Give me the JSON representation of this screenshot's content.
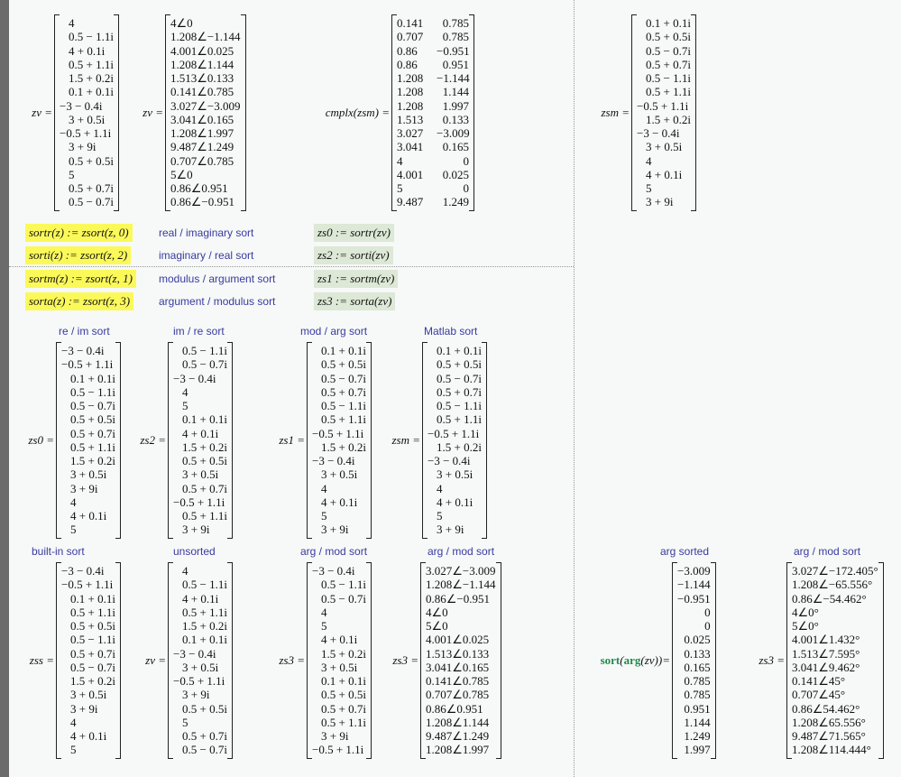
{
  "matrices": {
    "zv": {
      "label": "zv =",
      "rows": [
        "4",
        "0.5 − 1.1i",
        "4 + 0.1i",
        "0.5 + 1.1i",
        "1.5 + 0.2i",
        "0.1 + 0.1i",
        "−3 − 0.4i",
        "3 + 0.5i",
        "−0.5 + 1.1i",
        "3 + 9i",
        "0.5 + 0.5i",
        "5",
        "0.5 + 0.7i",
        "0.5 − 0.7i"
      ]
    },
    "zv_polar": {
      "label": "zv =",
      "rows": [
        "4∠0",
        "1.208∠−1.144",
        "4.001∠0.025",
        "1.208∠1.144",
        "1.513∠0.133",
        "0.141∠0.785",
        "3.027∠−3.009",
        "3.041∠0.165",
        "1.208∠1.997",
        "9.487∠1.249",
        "0.707∠0.785",
        "5∠0",
        "0.86∠0.951",
        "0.86∠−0.951"
      ]
    },
    "cmplx_zsm": {
      "label": "cmplx(zsm) =",
      "rows": [
        [
          "0.141",
          "0.785"
        ],
        [
          "0.707",
          "0.785"
        ],
        [
          "0.86",
          "−0.951"
        ],
        [
          "0.86",
          "0.951"
        ],
        [
          "1.208",
          "−1.144"
        ],
        [
          "1.208",
          "1.144"
        ],
        [
          "1.208",
          "1.997"
        ],
        [
          "1.513",
          "0.133"
        ],
        [
          "3.027",
          "−3.009"
        ],
        [
          "3.041",
          "0.165"
        ],
        [
          "4",
          "0"
        ],
        [
          "4.001",
          "0.025"
        ],
        [
          "5",
          "0"
        ],
        [
          "9.487",
          "1.249"
        ]
      ]
    },
    "zsm_top": {
      "label": "zsm =",
      "rows": [
        "0.1 + 0.1i",
        "0.5 + 0.5i",
        "0.5 − 0.7i",
        "0.5 + 0.7i",
        "0.5 − 1.1i",
        "0.5 + 1.1i",
        "−0.5 + 1.1i",
        "1.5 + 0.2i",
        "−3 − 0.4i",
        "3 + 0.5i",
        "4",
        "4 + 0.1i",
        "5",
        "3 + 9i"
      ]
    },
    "zs0": {
      "label": "zs0 =",
      "rows": [
        "−3 − 0.4i",
        "−0.5 + 1.1i",
        "0.1 + 0.1i",
        "0.5 − 1.1i",
        "0.5 − 0.7i",
        "0.5 + 0.5i",
        "0.5 + 0.7i",
        "0.5 + 1.1i",
        "1.5 + 0.2i",
        "3 + 0.5i",
        "3 + 9i",
        "4",
        "4 + 0.1i",
        "5"
      ]
    },
    "zs2": {
      "label": "zs2 =",
      "rows": [
        "0.5 − 1.1i",
        "0.5 − 0.7i",
        "−3 − 0.4i",
        "4",
        "5",
        "0.1 + 0.1i",
        "4 + 0.1i",
        "1.5 + 0.2i",
        "0.5 + 0.5i",
        "3 + 0.5i",
        "0.5 + 0.7i",
        "−0.5 + 1.1i",
        "0.5 + 1.1i",
        "3 + 9i"
      ]
    },
    "zs1": {
      "label": "zs1 =",
      "rows": [
        "0.1 + 0.1i",
        "0.5 + 0.5i",
        "0.5 − 0.7i",
        "0.5 + 0.7i",
        "0.5 − 1.1i",
        "0.5 + 1.1i",
        "−0.5 + 1.1i",
        "1.5 + 0.2i",
        "−3 − 0.4i",
        "3 + 0.5i",
        "4",
        "4 + 0.1i",
        "5",
        "3 + 9i"
      ]
    },
    "zsm": {
      "label": "zsm =",
      "rows": [
        "0.1 + 0.1i",
        "0.5 + 0.5i",
        "0.5 − 0.7i",
        "0.5 + 0.7i",
        "0.5 − 1.1i",
        "0.5 + 1.1i",
        "−0.5 + 1.1i",
        "1.5 + 0.2i",
        "−3 − 0.4i",
        "3 + 0.5i",
        "4",
        "4 + 0.1i",
        "5",
        "3 + 9i"
      ]
    },
    "zss": {
      "label": "zss =",
      "rows": [
        "−3 − 0.4i",
        "−0.5 + 1.1i",
        "0.1 + 0.1i",
        "0.5 + 1.1i",
        "0.5 + 0.5i",
        "0.5 − 1.1i",
        "0.5 + 0.7i",
        "0.5 − 0.7i",
        "1.5 + 0.2i",
        "3 + 0.5i",
        "3 + 9i",
        "4",
        "4 + 0.1i",
        "5"
      ]
    },
    "zv_unsorted": {
      "label": "zv =",
      "rows": [
        "4",
        "0.5 − 1.1i",
        "4 + 0.1i",
        "0.5 + 1.1i",
        "1.5 + 0.2i",
        "0.1 + 0.1i",
        "−3 − 0.4i",
        "3 + 0.5i",
        "−0.5 + 1.1i",
        "3 + 9i",
        "0.5 + 0.5i",
        "5",
        "0.5 + 0.7i",
        "0.5 − 0.7i"
      ]
    },
    "zs3": {
      "label": "zs3 =",
      "rows": [
        "−3 − 0.4i",
        "0.5 − 1.1i",
        "0.5 − 0.7i",
        "4",
        "5",
        "4 + 0.1i",
        "1.5 + 0.2i",
        "3 + 0.5i",
        "0.1 + 0.1i",
        "0.5 + 0.5i",
        "0.5 + 0.7i",
        "0.5 + 1.1i",
        "3 + 9i",
        "−0.5 + 1.1i"
      ]
    },
    "zs3_polar": {
      "label": "zs3 =",
      "rows": [
        "3.027∠−3.009",
        "1.208∠−1.144",
        "0.86∠−0.951",
        "4∠0",
        "5∠0",
        "4.001∠0.025",
        "1.513∠0.133",
        "3.041∠0.165",
        "0.141∠0.785",
        "0.707∠0.785",
        "0.86∠0.951",
        "1.208∠1.144",
        "9.487∠1.249",
        "1.208∠1.997"
      ]
    },
    "sort_arg": {
      "label_fn1": "sort",
      "label_fn2": "arg",
      "label_var": "zv",
      "label_eq": "=",
      "rows": [
        "−3.009",
        "−1.144",
        "−0.951",
        "0",
        "0",
        "0.025",
        "0.133",
        "0.165",
        "0.785",
        "0.785",
        "0.951",
        "1.144",
        "1.249",
        "1.997"
      ]
    },
    "zs3_deg": {
      "label": "zs3 =",
      "rows": [
        "3.027∠−172.405°",
        "1.208∠−65.556°",
        "0.86∠−54.462°",
        "4∠0°",
        "5∠0°",
        "4.001∠1.432°",
        "1.513∠7.595°",
        "3.041∠9.462°",
        "0.141∠45°",
        "0.707∠45°",
        "0.86∠54.462°",
        "1.208∠65.556°",
        "9.487∠71.565°",
        "1.208∠114.444°"
      ]
    }
  },
  "definitions": [
    {
      "def": "sortr(z) := zsort(z, 0)",
      "note": "real / imaginary sort",
      "assign": "zs0 := sortr(zv)"
    },
    {
      "def": "sorti(z) := zsort(z, 2)",
      "note": "imaginary / real sort",
      "assign": "zs2 := sorti(zv)"
    },
    {
      "def": "sortm(z) := zsort(z, 1)",
      "note": "modulus / argument sort",
      "assign": "zs1 := sortm(zv)"
    },
    {
      "def": "sorta(z) := zsort(z, 3)",
      "note": "argument / modulus sort",
      "assign": "zs3 := sorta(zv)"
    }
  ],
  "headings": {
    "re_im": "re / im sort",
    "im_re": "im / re sort",
    "mod_arg": "mod / arg sort",
    "matlab": "Matlab sort",
    "builtin": "built-in sort",
    "unsorted": "unsorted",
    "arg_mod1": "arg / mod sort",
    "arg_mod2": "arg / mod sort",
    "arg_sorted": "arg sorted",
    "arg_mod3": "arg / mod sort"
  },
  "colors": {
    "definition_highlight": "#fbf95a",
    "assignment_highlight": "#dde8d6",
    "comment_text": "#3a3aa0",
    "builtin_function": "#1f8a4c"
  }
}
